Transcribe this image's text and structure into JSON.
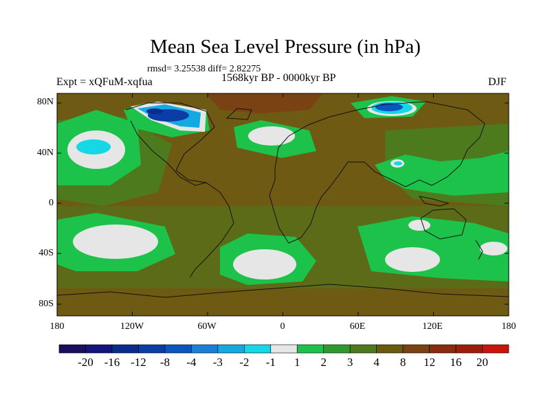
{
  "title": "Mean Sea Level Pressure (in hPa)",
  "stats": "rmsd= 3.25538 diff= 2.82275",
  "subtitle": "1568kyr BP - 0000kyr BP",
  "left_label": "Expt = xQFuM-xqfua",
  "right_label": "DJF",
  "map": {
    "y_axis_labels": [
      "80N",
      "40N",
      "0",
      "40S",
      "80S"
    ],
    "x_axis_labels": [
      "180",
      "120W",
      "60W",
      "0",
      "60E",
      "120E",
      "180"
    ]
  },
  "colorbar": {
    "labels": [
      "-20",
      "-16",
      "-12",
      "-8",
      "-4",
      "-3",
      "-2",
      "-1",
      "1",
      "2",
      "3",
      "4",
      "8",
      "12",
      "16",
      "20"
    ],
    "colors": [
      "#1a0f5e",
      "#14147a",
      "#0a2a8c",
      "#0a3ea6",
      "#0a55bf",
      "#1a7fd8",
      "#14a9e0",
      "#14d8e6",
      "#e6e6e6",
      "#1cc24a",
      "#2e9a2e",
      "#4e7a1e",
      "#6a5a10",
      "#7a4212",
      "#8a2a0e",
      "#a01c0a",
      "#c8140a"
    ]
  },
  "colors": {
    "background_anomaly": "#6e5a12",
    "positive_low": "#1cc24a",
    "positive_mid": "#4e7a1e",
    "near_zero": "#e6e6e6",
    "negative": "#14d8e6"
  }
}
